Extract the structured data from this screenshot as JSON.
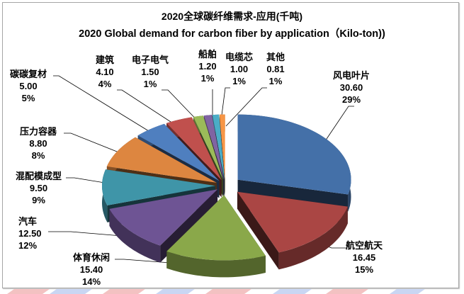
{
  "chart_data": {
    "type": "pie",
    "style": "3d-exploded",
    "title": "2020全球碳纤维需求-应用(千吨)",
    "subtitle": "2020 Global demand for carbon fiber by application（Kilo-ton))",
    "unit": "Kilo-ton",
    "categories": [
      "风电叶片",
      "航空航天",
      "体育休闲",
      "汽车",
      "混配模成型",
      "压力容器",
      "碳碳复材",
      "建筑",
      "电子电气",
      "船舶",
      "电缆芯",
      "其他"
    ],
    "values": [
      30.6,
      16.45,
      15.4,
      12.5,
      9.5,
      8.8,
      5.0,
      4.1,
      1.5,
      1.2,
      1.0,
      0.81
    ],
    "percent_labels": [
      "29%",
      "15%",
      "14%",
      "12%",
      "9%",
      "8%",
      "5%",
      "4%",
      "1%",
      "1%",
      "1%",
      "1%"
    ],
    "value_labels": [
      "30.60",
      "16.45",
      "15.40",
      "12.50",
      "9.50",
      "8.80",
      "5.00",
      "4.10",
      "1.50",
      "1.20",
      "1.00",
      "0.81"
    ],
    "colors": [
      "#4470a8",
      "#aa4644",
      "#8aa84a",
      "#6e5494",
      "#3f95a8",
      "#dd8640",
      "#4f7fbf",
      "#c0504d",
      "#9bbb59",
      "#8064a2",
      "#4bacc6",
      "#f79646"
    ],
    "legend": "none (data labels with leader lines)"
  },
  "labels": [
    {
      "name": "风电叶片",
      "value": "30.60",
      "pct": "29%"
    },
    {
      "name": "航空航天",
      "value": "16.45",
      "pct": "15%"
    },
    {
      "name": "体育休闲",
      "value": "15.40",
      "pct": "14%"
    },
    {
      "name": "汽车",
      "value": "12.50",
      "pct": "12%"
    },
    {
      "name": "混配模成型",
      "value": "9.50",
      "pct": "9%"
    },
    {
      "name": "压力容器",
      "value": "8.80",
      "pct": "8%"
    },
    {
      "name": "碳碳复材",
      "value": "5.00",
      "pct": "5%"
    },
    {
      "name": "建筑",
      "value": "4.10",
      "pct": "4%"
    },
    {
      "name": "电子电气",
      "value": "1.50",
      "pct": "1%"
    },
    {
      "name": "船舶",
      "value": "1.20",
      "pct": "1%"
    },
    {
      "name": "电缆芯",
      "value": "1.00",
      "pct": "1%"
    },
    {
      "name": "其他",
      "value": "0.81",
      "pct": "1%"
    }
  ]
}
